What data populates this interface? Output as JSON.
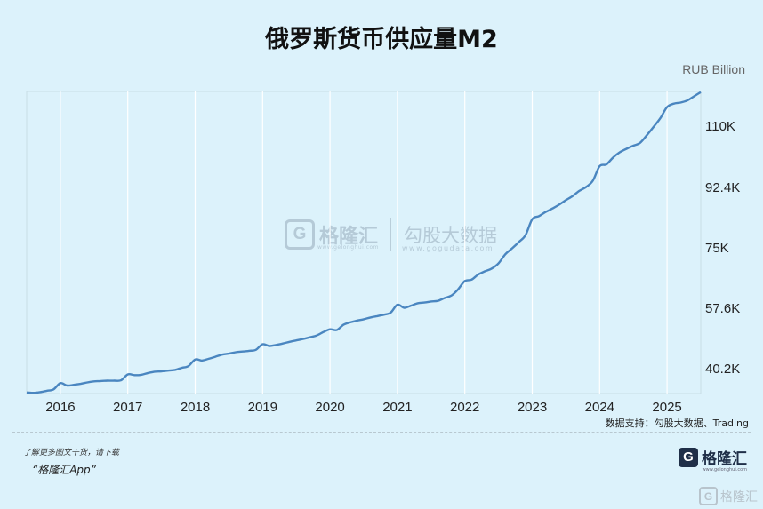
{
  "header": {
    "title": "俄罗斯货币供应量M2",
    "unit": "RUB Billion"
  },
  "source": "数据支持：勾股大数据、Trading",
  "footer": {
    "line1": "了解更多图文干货，请下载",
    "line2": "“格隆汇App”"
  },
  "logo": {
    "mark": "G",
    "text": "格隆汇",
    "sub": "www.gelonghui.com"
  },
  "watermark": {
    "brand1": "格隆汇",
    "brand1_sub": "www.gelonghui.com",
    "brand2": "勾股大数据",
    "brand2_sub": "www.gogudata.com",
    "corner": "格隆汇"
  },
  "colors": {
    "background": "#dcf2fb",
    "line": "#4a86c0",
    "grid": "#ffffff"
  },
  "chart_data": {
    "type": "line",
    "title": "俄罗斯货币供应量M2",
    "unit": "RUB Billion",
    "xlabel": "",
    "ylabel": "",
    "x_ticks": [
      "2016",
      "2017",
      "2018",
      "2019",
      "2020",
      "2021",
      "2022",
      "2023",
      "2024",
      "2025"
    ],
    "y_ticks": [
      "40.2K",
      "57.6K",
      "75K",
      "92.4K",
      "110K"
    ],
    "y_tick_values": [
      40200,
      57600,
      75000,
      92400,
      110000
    ],
    "x_range": [
      2015.5,
      2025.5
    ],
    "ylim": [
      33000,
      120000
    ],
    "grid": "vertical",
    "y_axis_position": "right",
    "series": [
      {
        "x": [
          2015.5,
          2015.6,
          2015.7,
          2015.8,
          2015.9,
          2016.0,
          2016.1,
          2016.2,
          2016.3,
          2016.4,
          2016.5,
          2016.6,
          2016.7,
          2016.8,
          2016.9,
          2017.0,
          2017.1,
          2017.2,
          2017.3,
          2017.4,
          2017.5,
          2017.6,
          2017.7,
          2017.8,
          2017.9,
          2018.0,
          2018.1,
          2018.2,
          2018.3,
          2018.4,
          2018.5,
          2018.6,
          2018.7,
          2018.8,
          2018.9,
          2019.0,
          2019.1,
          2019.2,
          2019.3,
          2019.4,
          2019.5,
          2019.6,
          2019.7,
          2019.8,
          2019.9,
          2020.0,
          2020.1,
          2020.2,
          2020.3,
          2020.4,
          2020.5,
          2020.6,
          2020.7,
          2020.8,
          2020.9,
          2021.0,
          2021.1,
          2021.2,
          2021.3,
          2021.4,
          2021.5,
          2021.6,
          2021.7,
          2021.8,
          2021.9,
          2022.0,
          2022.1,
          2022.2,
          2022.3,
          2022.4,
          2022.5,
          2022.6,
          2022.7,
          2022.8,
          2022.9,
          2023.0,
          2023.1,
          2023.2,
          2023.3,
          2023.4,
          2023.5,
          2023.6,
          2023.7,
          2023.8,
          2023.9,
          2024.0,
          2024.1,
          2024.2,
          2024.3,
          2024.4,
          2024.5,
          2024.6,
          2024.7,
          2024.8,
          2024.9,
          2025.0,
          2025.1,
          2025.2,
          2025.3,
          2025.4,
          2025.5
        ],
        "values": [
          33300,
          33200,
          33400,
          33800,
          34200,
          36000,
          35300,
          35500,
          35800,
          36200,
          36500,
          36600,
          36700,
          36700,
          36800,
          38500,
          38300,
          38400,
          38900,
          39300,
          39400,
          39600,
          39800,
          40400,
          40900,
          42800,
          42500,
          43000,
          43600,
          44200,
          44500,
          44900,
          45100,
          45300,
          45600,
          47200,
          46700,
          47000,
          47400,
          47900,
          48300,
          48700,
          49200,
          49700,
          50700,
          51500,
          51300,
          52800,
          53500,
          54000,
          54400,
          54900,
          55300,
          55700,
          56300,
          58600,
          57700,
          58300,
          59000,
          59200,
          59500,
          59700,
          60500,
          61200,
          63000,
          65400,
          65800,
          67300,
          68200,
          69000,
          70500,
          73100,
          74800,
          76600,
          78600,
          83200,
          84100,
          85300,
          86300,
          87400,
          88700,
          89900,
          91400,
          92500,
          94300,
          98500,
          99000,
          101000,
          102500,
          103500,
          104400,
          105200,
          107400,
          109800,
          112300,
          115500,
          116500,
          116800,
          117400,
          118600,
          119800
        ]
      }
    ]
  }
}
